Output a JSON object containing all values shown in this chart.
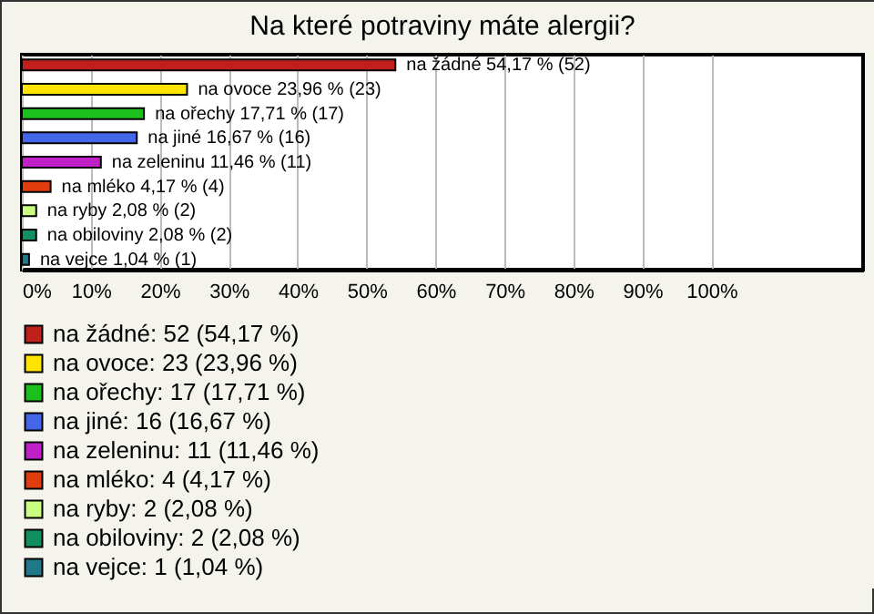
{
  "chart_data": {
    "type": "bar",
    "orientation": "horizontal",
    "stacked": true,
    "title": "Na které potraviny máte alergii?",
    "categories": [
      null,
      null,
      null,
      null,
      null,
      null,
      null,
      null,
      null
    ],
    "series": [
      {
        "name": "na žádné: 52 (54,17 %)",
        "color": "#c0201c",
        "values": [
          54.17,
          null,
          null,
          null,
          null,
          null,
          null,
          null,
          null
        ],
        "value_labels": [
          "na žádné 54,17 % (52)",
          null,
          null,
          null,
          null,
          null,
          null,
          null,
          null
        ]
      },
      {
        "name": "na ovoce: 23 (23,96 %)",
        "color": "#ffe400",
        "values": [
          null,
          23.96,
          null,
          null,
          null,
          null,
          null,
          null,
          null
        ],
        "value_labels": [
          null,
          "na ovoce 23,96 % (23)",
          null,
          null,
          null,
          null,
          null,
          null,
          null
        ]
      },
      {
        "name": "na ořechy: 17 (17,71 %)",
        "color": "#1cc01c",
        "values": [
          null,
          null,
          17.71,
          null,
          null,
          null,
          null,
          null,
          null
        ],
        "value_labels": [
          null,
          null,
          "na ořechy 17,71 % (17)",
          null,
          null,
          null,
          null,
          null,
          null
        ]
      },
      {
        "name": "na jiné: 16 (16,67 %)",
        "color": "#4466e8",
        "values": [
          null,
          null,
          null,
          16.67,
          null,
          null,
          null,
          null,
          null
        ],
        "value_labels": [
          null,
          null,
          null,
          "na jiné 16,67 % (16)",
          null,
          null,
          null,
          null,
          null
        ]
      },
      {
        "name": "na zeleninu: 11 (11,46 %)",
        "color": "#c020c8",
        "values": [
          null,
          null,
          null,
          null,
          11.46,
          null,
          null,
          null,
          null
        ],
        "value_labels": [
          null,
          null,
          null,
          null,
          "na zeleninu 11,46 % (11)",
          null,
          null,
          null,
          null
        ]
      },
      {
        "name": "na mléko: 4 (4,17 %)",
        "color": "#e03c0c",
        "values": [
          null,
          null,
          null,
          null,
          null,
          4.17,
          null,
          null,
          null
        ],
        "value_labels": [
          null,
          null,
          null,
          null,
          null,
          "na mléko 4,17 % (4)",
          null,
          null,
          null
        ]
      },
      {
        "name": "na ryby: 2 (2,08 %)",
        "color": "#c8ff80",
        "values": [
          null,
          null,
          null,
          null,
          null,
          null,
          2.08,
          null,
          null
        ],
        "value_labels": [
          null,
          null,
          null,
          null,
          null,
          null,
          "na ryby 2,08 % (2)",
          null,
          null
        ]
      },
      {
        "name": "na obiloviny: 2 (2,08 %)",
        "color": "#109060",
        "values": [
          null,
          null,
          null,
          null,
          null,
          null,
          null,
          2.08,
          null
        ],
        "value_labels": [
          null,
          null,
          null,
          null,
          null,
          null,
          null,
          "na obiloviny 2,08 % (2)",
          null
        ]
      },
      {
        "name": "na vejce: 1 (1,04 %)",
        "color": "#207888",
        "values": [
          null,
          null,
          null,
          null,
          null,
          null,
          null,
          null,
          1.04
        ],
        "value_labels": [
          null,
          null,
          null,
          null,
          null,
          null,
          null,
          null,
          "na vejce 1,04 % (1)"
        ]
      }
    ],
    "xlim": [
      0,
      122
    ],
    "xticks": [
      {
        "value": 0,
        "label": "0%"
      },
      {
        "value": 10,
        "label": "10%"
      },
      {
        "value": 20,
        "label": "20%"
      },
      {
        "value": 30,
        "label": "30%"
      },
      {
        "value": 40,
        "label": "40%"
      },
      {
        "value": 50,
        "label": "50%"
      },
      {
        "value": 60,
        "label": "60%"
      },
      {
        "value": 70,
        "label": "70%"
      },
      {
        "value": 80,
        "label": "80%"
      },
      {
        "value": 90,
        "label": "90%"
      },
      {
        "value": 100,
        "label": "100%"
      }
    ],
    "grid": "x",
    "legend": "bottom",
    "tick_labels": "x"
  }
}
